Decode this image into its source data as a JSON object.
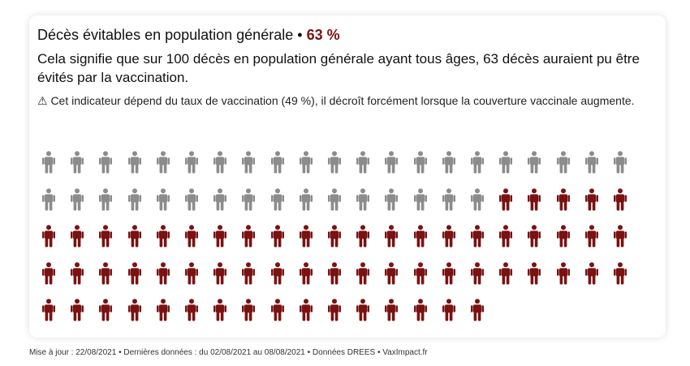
{
  "header": {
    "title": "Décès évitables en population générale",
    "separator": "•",
    "percent": "63 %"
  },
  "subtitle": "Cela signifie que sur 100 décès en population générale ayant tous âges, 63 décès auraient pu être évités par la vaccination.",
  "note": "⚠ Cet indicateur dépend du taux de vaccination (49 %), il décroît forcément lorsque la couverture vaccinale augmente.",
  "pictogram": {
    "total": 100,
    "highlighted": 63,
    "per_row": 21,
    "highlight_color": "#7a1212",
    "base_color": "#8c8c8c"
  },
  "footer": "Mise à jour : 22/08/2021 • Dernières données : du 02/08/2021 au 08/08/2021 • Données DREES • VaxImpact.fr"
}
